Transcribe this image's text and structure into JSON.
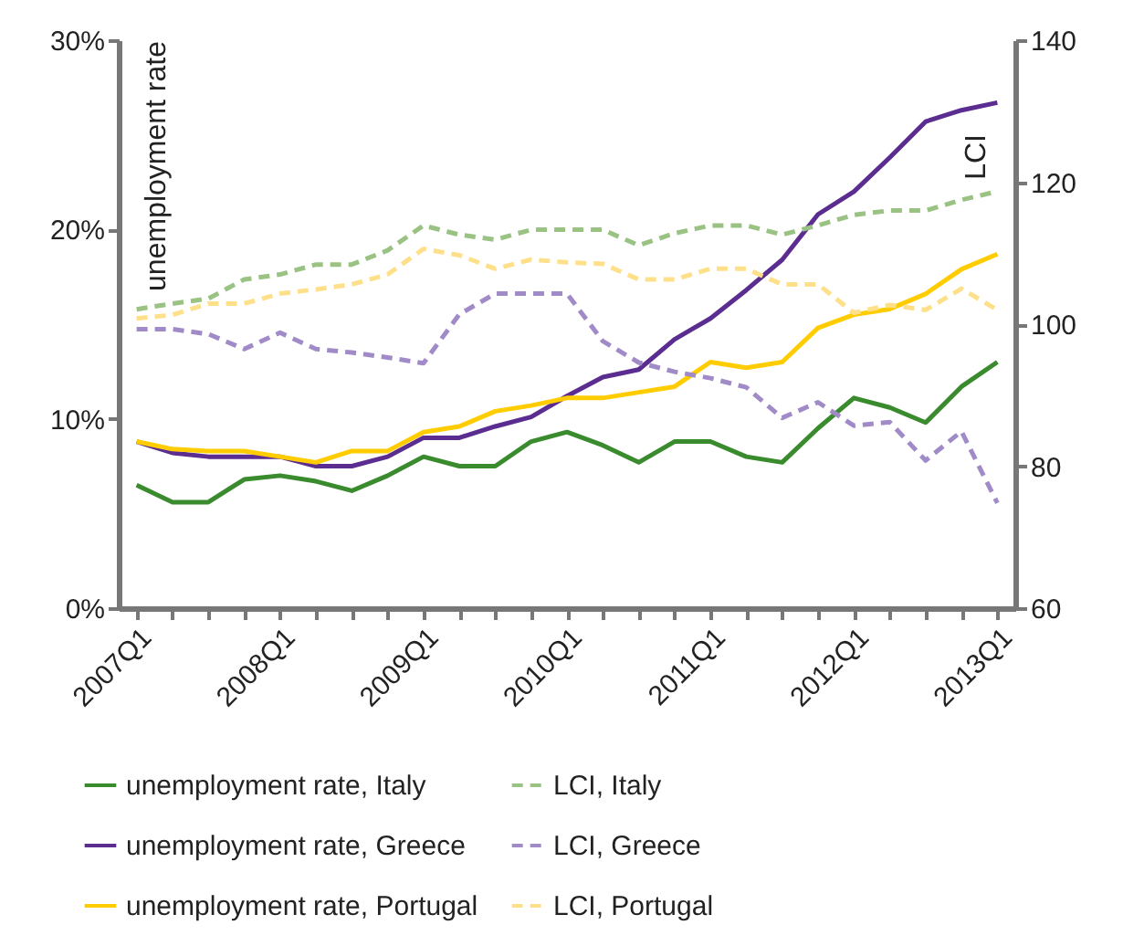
{
  "chart_data": {
    "type": "line",
    "ylabel": "unemployment rate",
    "y2label": "LCI",
    "categories": [
      "2007Q1",
      null,
      null,
      null,
      "2008Q1",
      null,
      null,
      null,
      "2009Q1",
      null,
      null,
      null,
      "2010Q1",
      null,
      null,
      null,
      "2011Q1",
      null,
      null,
      null,
      "2012Q1",
      null,
      null,
      null,
      "2013Q1"
    ],
    "ylim": [
      0,
      30
    ],
    "yticks": [
      {
        "value": 0,
        "label": "0%"
      },
      {
        "value": 10,
        "label": "10%"
      },
      {
        "value": 20,
        "label": "20%"
      },
      {
        "value": 30,
        "label": "30%"
      }
    ],
    "y2lim": [
      60,
      140
    ],
    "y2ticks": [
      60,
      80,
      100,
      120,
      140
    ],
    "grid": false,
    "legend": "bottom",
    "series": [
      {
        "name": "unemployment rate, Italy",
        "color": "#3a8a2e",
        "line_style": "solid",
        "values": [
          6.5,
          5.6,
          5.6,
          6.8,
          7.0,
          6.7,
          6.2,
          7.0,
          8.0,
          7.5,
          7.5,
          8.8,
          9.3,
          8.6,
          7.7,
          8.8,
          8.8,
          8.0,
          7.7,
          9.5,
          11.1,
          10.6,
          9.8,
          11.7,
          13.0
        ]
      },
      {
        "name": "unemployment rate, Greece",
        "color": "#5b2d90",
        "line_style": "solid",
        "values": [
          8.8,
          8.2,
          8.0,
          8.0,
          8.0,
          7.5,
          7.5,
          8.0,
          9.0,
          9.0,
          9.6,
          10.1,
          11.2,
          12.2,
          12.6,
          14.2,
          15.3,
          16.8,
          18.4,
          20.8,
          22.0,
          23.8,
          25.7,
          26.3,
          26.7
        ]
      },
      {
        "name": "unemployment rate, Portugal",
        "color": "#ffcc00",
        "line_style": "solid",
        "values": [
          8.8,
          8.4,
          8.3,
          8.3,
          8.0,
          7.7,
          8.3,
          8.3,
          9.3,
          9.6,
          10.4,
          10.7,
          11.1,
          11.1,
          11.4,
          11.7,
          13.0,
          12.7,
          13.0,
          14.8,
          15.5,
          15.8,
          16.6,
          17.9,
          18.7
        ]
      },
      {
        "name": "LCI, Italy",
        "color": "#99c283",
        "line_style": "dashed",
        "axis": "y2",
        "values": [
          102.1,
          102.9,
          103.6,
          106.3,
          107.0,
          108.4,
          108.4,
          110.4,
          113.9,
          112.6,
          111.9,
          113.3,
          113.3,
          113.3,
          111.1,
          112.8,
          113.9,
          113.9,
          112.6,
          113.9,
          115.4,
          116.0,
          116.0,
          117.5,
          118.7
        ]
      },
      {
        "name": "LCI, Greece",
        "color": "#a08bc8",
        "line_style": "dashed",
        "axis": "y2",
        "values": [
          99.3,
          99.3,
          98.6,
          96.5,
          98.8,
          96.5,
          96.0,
          95.3,
          94.5,
          101.4,
          104.3,
          104.3,
          104.3,
          97.6,
          94.6,
          93.3,
          92.4,
          91.1,
          86.8,
          89.0,
          85.7,
          86.2,
          80.8,
          84.9,
          74.8
        ]
      },
      {
        "name": "LCI, Portugal",
        "color": "#ffe08a",
        "line_style": "dashed",
        "axis": "y2",
        "values": [
          100.8,
          101.3,
          102.9,
          102.9,
          104.3,
          104.9,
          105.6,
          107.0,
          110.6,
          109.7,
          107.8,
          109.1,
          108.7,
          108.5,
          106.3,
          106.3,
          107.8,
          107.8,
          105.6,
          105.6,
          101.6,
          102.7,
          102.0,
          105.0,
          102.0
        ]
      }
    ]
  }
}
